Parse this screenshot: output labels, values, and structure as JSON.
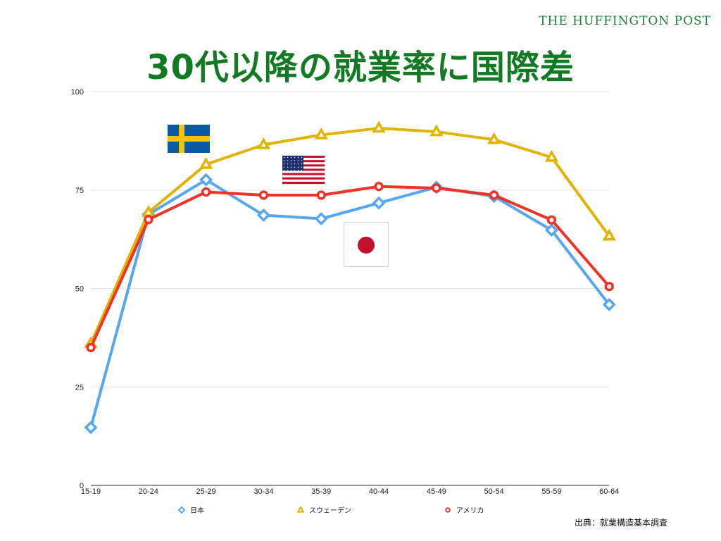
{
  "brand": "THE HUFFINGTON POST",
  "source": "出典：就業構造基本調査",
  "chart_data": {
    "type": "line",
    "title": "30代以降の就業率に国際差",
    "categories": [
      "15-19",
      "20-24",
      "25-29",
      "30-34",
      "35-39",
      "40-44",
      "45-49",
      "50-54",
      "55-59",
      "60-64"
    ],
    "ylim": [
      0,
      100
    ],
    "yticks": [
      0,
      25,
      50,
      75,
      100
    ],
    "grid": true,
    "legend_position": "bottom",
    "series": [
      {
        "name": "日本",
        "color": "#56a6f0",
        "marker": "diamond",
        "values": [
          14.7,
          68.8,
          77.6,
          68.6,
          67.7,
          71.7,
          75.7,
          73.4,
          64.8,
          45.9
        ]
      },
      {
        "name": "スウェーデン",
        "color": "#e0b400",
        "marker": "triangle",
        "values": [
          36.0,
          69.3,
          81.5,
          86.5,
          89.0,
          90.7,
          89.8,
          87.8,
          83.3,
          63.3
        ]
      },
      {
        "name": "アメリカ",
        "color": "#ef3327",
        "marker": "circle",
        "values": [
          35.0,
          67.5,
          74.5,
          73.7,
          73.7,
          75.9,
          75.5,
          73.7,
          67.4,
          50.5
        ]
      }
    ]
  }
}
